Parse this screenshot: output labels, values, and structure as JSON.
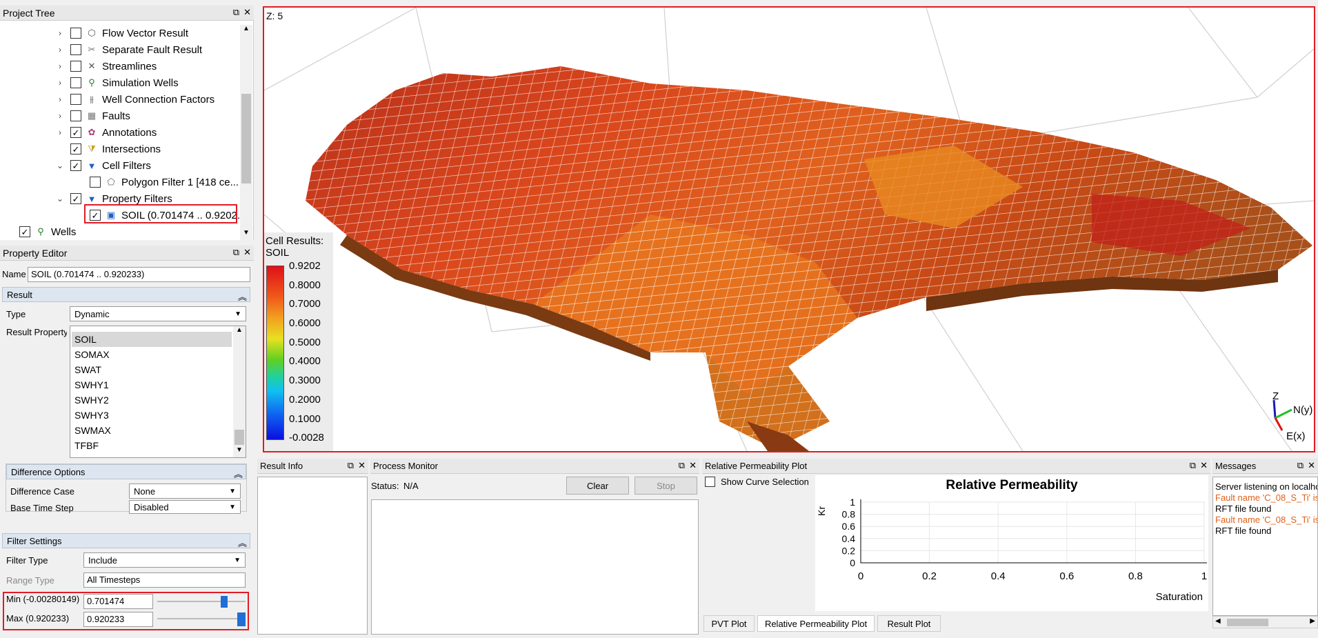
{
  "project_tree": {
    "title": "Project Tree",
    "items": [
      {
        "label": "Flow Vector Result",
        "checked": false,
        "expand": "›"
      },
      {
        "label": "Separate Fault Result",
        "checked": false,
        "expand": "›"
      },
      {
        "label": "Streamlines",
        "checked": false,
        "expand": "›"
      },
      {
        "label": "Simulation Wells",
        "checked": false,
        "expand": "›"
      },
      {
        "label": "Well Connection Factors",
        "checked": false,
        "expand": "›"
      },
      {
        "label": "Faults",
        "checked": false,
        "expand": "›"
      },
      {
        "label": "Annotations",
        "checked": true,
        "expand": "›"
      },
      {
        "label": "Intersections",
        "checked": true,
        "expand": ""
      },
      {
        "label": "Cell Filters",
        "checked": true,
        "expand": "⌄"
      },
      {
        "label": "Polygon Filter 1   [418 ce...",
        "checked": false,
        "expand": ""
      },
      {
        "label": "Property Filters",
        "checked": true,
        "expand": "⌄"
      },
      {
        "label": "SOIL (0.701474 .. 0.9202...",
        "checked": true,
        "expand": ""
      },
      {
        "label": "Wells",
        "checked": true,
        "expand": ""
      }
    ]
  },
  "property_editor": {
    "title": "Property Editor",
    "name_label": "Name",
    "name_value": "SOIL (0.701474 .. 0.920233)",
    "result_group": "Result",
    "type_label": "Type",
    "type_value": "Dynamic",
    "result_property_label": "Result Property",
    "properties": [
      "SOIL",
      "SOMAX",
      "SWAT",
      "SWHY1",
      "SWHY2",
      "SWHY3",
      "SWMAX",
      "TFBF"
    ],
    "difference_group": "Difference Options",
    "difference_case_label": "Difference Case",
    "difference_case_value": "None",
    "base_time_step_label": "Base Time Step",
    "base_time_step_value": "Disabled",
    "filter_group": "Filter Settings",
    "filter_type_label": "Filter Type",
    "filter_type_value": "Include",
    "range_type_label": "Range Type",
    "range_type_value": "All Timesteps",
    "min_label": "Min (-0.00280149)",
    "min_value": "0.701474",
    "min_fraction": 0.78,
    "max_label": "Max (0.920233)",
    "max_value": "0.920233",
    "max_fraction": 1.0
  },
  "viewer": {
    "z_label": "Z: 5",
    "legend_title_1": "Cell Results:",
    "legend_title_2": "SOIL",
    "legend_values": [
      "0.9202",
      "0.8000",
      "0.7000",
      "0.6000",
      "0.5000",
      "0.4000",
      "0.3000",
      "0.2000",
      "0.1000",
      "-0.0028"
    ],
    "axis_z": "Z",
    "axis_n": "N(y)",
    "axis_e": "E(x)"
  },
  "result_info": {
    "title": "Result Info"
  },
  "process_monitor": {
    "title": "Process Monitor",
    "status_label": "Status:",
    "status_value": "N/A",
    "clear_label": "Clear",
    "stop_label": "Stop"
  },
  "relperm": {
    "title": "Relative Permeability Plot",
    "show_curve_label": "Show Curve Selection",
    "plot_title": "Relative Permeability",
    "ylabel": "Kr",
    "xlabel": "Saturation",
    "yticks": [
      "1",
      "0.8",
      "0.6",
      "0.4",
      "0.2",
      "0"
    ],
    "xticks": [
      "0",
      "0.2",
      "0.4",
      "0.6",
      "0.8",
      "1"
    ],
    "tabs": [
      "PVT Plot",
      "Relative Permeability Plot",
      "Result Plot"
    ]
  },
  "messages": {
    "title": "Messages",
    "lines": [
      {
        "text": "Server listening on localho",
        "color": "#000000"
      },
      {
        "text": "Fault name 'C_08_S_Ti' is",
        "color": "#e0601a"
      },
      {
        "text": "RFT file found",
        "color": "#000000"
      },
      {
        "text": "Fault name 'C_08_S_Ti' is",
        "color": "#e0601a"
      },
      {
        "text": "RFT file found",
        "color": "#000000"
      }
    ]
  }
}
